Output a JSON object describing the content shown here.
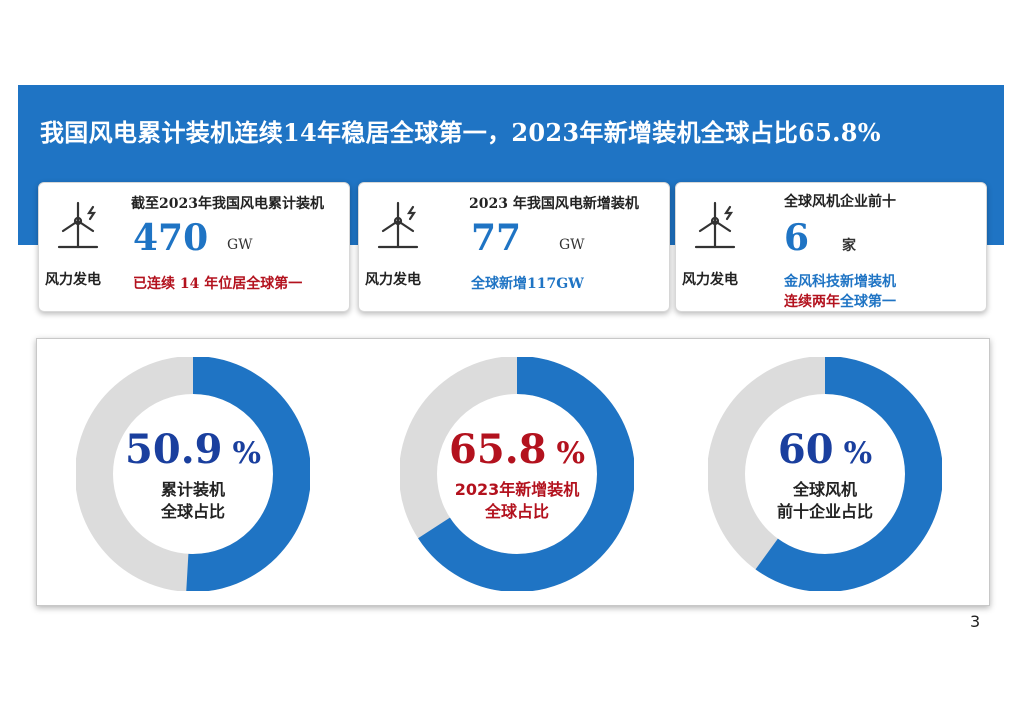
{
  "title": "我国风电累计装机连续14年稳居全球第一，2023年新增装机全球占比65.8%",
  "colors": {
    "accent": "#1f74c4",
    "red": "#b3121e",
    "track": "#dcdcdc"
  },
  "cards": [
    {
      "icon": "wind-turbine-icon",
      "icon_label": "风力发电",
      "caption": "截至2023年我国风电累计装机",
      "value": "470",
      "unit": "GW",
      "note": "已连续 14 年位居全球第一"
    },
    {
      "icon": "wind-turbine-icon",
      "icon_label": "风力发电",
      "caption": "2023 年我国风电新增装机",
      "value": "77",
      "unit": "GW",
      "note": "全球新增117GW"
    },
    {
      "icon": "wind-turbine-icon",
      "icon_label": "风力发电",
      "caption": "全球风机企业前十",
      "value": "6",
      "unit": "家",
      "note_line1": "金风科技新增装机",
      "note_line2a": "连续两年",
      "note_line2b": "全球第一"
    }
  ],
  "chart_data": {
    "type": "pie",
    "series": [
      {
        "value_text": "50.9",
        "pct": "%",
        "value": 50.9,
        "label_line1": "累计装机",
        "label_line2": "全球占比"
      },
      {
        "value_text": "65.8",
        "pct": "%",
        "value": 65.8,
        "label_line1": "2023年新增装机",
        "label_line2": "全球占比"
      },
      {
        "value_text": "60",
        "pct": "%",
        "value": 60,
        "label_line1": "全球风机",
        "label_line2": "前十企业占比"
      }
    ]
  },
  "page_number": "3"
}
